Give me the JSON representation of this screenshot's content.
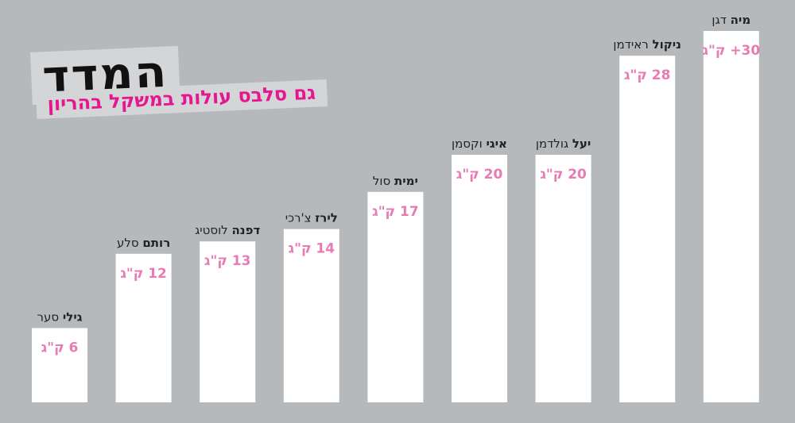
{
  "title": "המדד",
  "subtitle": "גם סלבס עולות במשקל בהריון",
  "colors": {
    "background": "#b6b9bc",
    "bar": "#ffffff",
    "value_text": "#e87ab4",
    "label_text": "#222222",
    "subtitle": "#e5168f"
  },
  "chart_data": {
    "type": "bar",
    "categories": [
      {
        "first": "גילי",
        "last": "סער"
      },
      {
        "first": "רותם",
        "last": "סלע"
      },
      {
        "first": "דפנה",
        "last": "לוסטיג"
      },
      {
        "first": "לירז",
        "last": "צ'רכי"
      },
      {
        "first": "ימית",
        "last": "סול"
      },
      {
        "first": "איגי",
        "last": "וקסמן"
      },
      {
        "first": "יעל",
        "last": "גולדמן"
      },
      {
        "first": "ניקול",
        "last": "ראידמן"
      },
      {
        "first": "מיה",
        "last": "דגן"
      }
    ],
    "values": [
      6,
      12,
      13,
      14,
      17,
      20,
      20,
      28,
      30
    ],
    "value_labels": [
      "6 ק\"ג",
      "12 ק\"ג",
      "13 ק\"ג",
      "14 ק\"ג",
      "17 ק\"ג",
      "20 ק\"ג",
      "20 ק\"ג",
      "28 ק\"ג",
      "30+ ק\"ג"
    ],
    "ylim": [
      0,
      33
    ],
    "grid": false,
    "legend": "none"
  }
}
